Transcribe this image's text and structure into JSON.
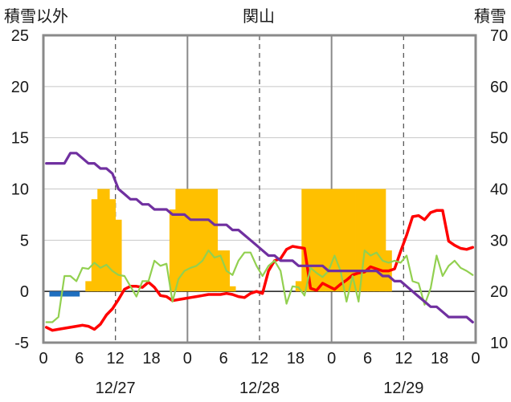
{
  "chart_data": {
    "type": "line",
    "title": "関山",
    "left_axis_label": "積雪以外",
    "right_axis_label": "積雪",
    "ylim_left": [
      -5,
      25
    ],
    "ylim_right": [
      10,
      70
    ],
    "yticks_left": [
      -5,
      0,
      5,
      10,
      15,
      20,
      25
    ],
    "yticks_right": [
      10,
      20,
      30,
      40,
      50,
      60,
      70
    ],
    "xlim_hours": [
      0,
      72
    ],
    "x_tick_labels": [
      "0",
      "6",
      "12",
      "18",
      "0",
      "6",
      "12",
      "18",
      "0",
      "6",
      "12",
      "18",
      "0"
    ],
    "date_labels": [
      "12/27",
      "12/28",
      "12/29"
    ],
    "grid": true,
    "colors": {
      "precip_snow": "#ffc000",
      "precip_rain": "#1f6fbf",
      "temperature": "#ff0000",
      "wind": "#92d050",
      "snow_depth": "#7030a0"
    },
    "series": [
      {
        "key": "precip_snow",
        "kind": "bar",
        "axis": "left",
        "x": [
          7,
          8,
          9,
          10,
          11,
          12,
          21,
          22,
          23,
          24,
          25,
          26,
          27,
          28,
          29,
          30,
          31,
          42,
          43,
          44,
          45,
          46,
          47,
          48,
          49,
          50,
          51,
          52,
          53,
          54,
          55,
          56,
          57
        ],
        "values": [
          1,
          9,
          10,
          10,
          9,
          7,
          8,
          10,
          10,
          10,
          10,
          10,
          10,
          10,
          4,
          4,
          0.5,
          1,
          10,
          10,
          10,
          10,
          10,
          10,
          10,
          10,
          10,
          10,
          10,
          10,
          10,
          10,
          4
        ]
      },
      {
        "key": "precip_rain",
        "kind": "bar",
        "axis": "left",
        "x": [
          1,
          2,
          3,
          4,
          5
        ],
        "values": [
          -0.5,
          -0.5,
          -0.5,
          -0.5,
          -0.5
        ]
      },
      {
        "key": "temperature",
        "kind": "line",
        "axis": "left",
        "x": [
          0,
          1,
          2,
          3,
          4,
          5,
          6,
          7,
          8,
          9,
          10,
          11,
          12,
          13,
          14,
          15,
          16,
          17,
          18,
          19,
          20,
          21,
          22,
          23,
          24,
          25,
          26,
          27,
          28,
          29,
          30,
          31,
          32,
          33,
          34,
          35,
          36,
          37,
          38,
          39,
          40,
          41,
          42,
          43,
          44,
          45,
          46,
          47,
          48,
          49,
          50,
          51,
          52,
          53,
          54,
          55,
          56,
          57,
          58,
          59,
          60,
          61,
          62,
          63,
          64,
          65,
          66,
          67,
          68,
          69,
          70,
          71
        ],
        "values": [
          -3.5,
          -3.8,
          -3.7,
          -3.6,
          -3.5,
          -3.4,
          -3.3,
          -3.4,
          -3.7,
          -3.2,
          -2.3,
          -1.7,
          -0.8,
          0.2,
          0.5,
          0.5,
          0.4,
          0.9,
          0.4,
          -0.4,
          -0.5,
          -0.9,
          -0.8,
          -0.7,
          -0.6,
          -0.5,
          -0.4,
          -0.3,
          -0.3,
          -0.3,
          -0.2,
          -0.3,
          -0.5,
          -0.6,
          -0.2,
          0.0,
          -0.2,
          2.0,
          3.0,
          3.2,
          4.1,
          4.4,
          4.3,
          4.2,
          0.3,
          0.1,
          0.8,
          0.5,
          0.2,
          0.7,
          1.1,
          1.6,
          1.8,
          1.9,
          2.4,
          2.2,
          2.0,
          2.0,
          2.2,
          3.9,
          5.5,
          7.3,
          7.4,
          7.0,
          7.7,
          7.9,
          7.9,
          4.9,
          4.5,
          4.2,
          4.1,
          4.3
        ]
      },
      {
        "key": "wind",
        "kind": "line",
        "axis": "left",
        "x": [
          0,
          1,
          2,
          3,
          4,
          5,
          6,
          7,
          8,
          9,
          10,
          11,
          12,
          13,
          14,
          15,
          16,
          17,
          18,
          19,
          20,
          21,
          22,
          23,
          24,
          25,
          26,
          27,
          28,
          29,
          30,
          31,
          32,
          33,
          34,
          35,
          36,
          37,
          38,
          39,
          40,
          41,
          42,
          43,
          44,
          45,
          46,
          47,
          48,
          49,
          50,
          51,
          52,
          53,
          54,
          55,
          56,
          57,
          58,
          59,
          60,
          61,
          62,
          63,
          64,
          65,
          66,
          67,
          68,
          69,
          70,
          71
        ],
        "values": [
          -3,
          -3,
          -2.5,
          1.5,
          1.5,
          1.0,
          2.3,
          2.2,
          2.8,
          2.3,
          2.6,
          2.0,
          1.6,
          1.5,
          0.5,
          -0.5,
          1.0,
          1.0,
          3.0,
          2.5,
          2.7,
          -1.0,
          1.2,
          2.0,
          2.3,
          2.5,
          3.0,
          4.0,
          3.3,
          3.5,
          2.0,
          1.6,
          3.0,
          3.8,
          3.8,
          2.5,
          1.5,
          2.5,
          3.0,
          2.0,
          -1.2,
          0.5,
          0.4,
          -0.4,
          2.3,
          1.8,
          1.4,
          2.0,
          3.5,
          2.0,
          -1.0,
          1.5,
          -1.0,
          4.0,
          3.5,
          3.8,
          3.0,
          2.8,
          3.0,
          2.8,
          3.5,
          1.0,
          0.8,
          -1.3,
          0.3,
          3.5,
          1.5,
          2.5,
          3.0,
          2.3,
          2.0,
          1.6
        ]
      },
      {
        "key": "snow_depth",
        "kind": "line",
        "axis": "right",
        "x": [
          0,
          1,
          2,
          3,
          4,
          5,
          6,
          7,
          8,
          9,
          10,
          11,
          12,
          13,
          14,
          15,
          16,
          17,
          18,
          19,
          20,
          21,
          22,
          23,
          24,
          25,
          26,
          27,
          28,
          29,
          30,
          31,
          32,
          33,
          34,
          35,
          36,
          37,
          38,
          39,
          40,
          41,
          42,
          43,
          44,
          45,
          46,
          47,
          48,
          49,
          50,
          51,
          52,
          53,
          54,
          55,
          56,
          57,
          58,
          59,
          60,
          61,
          62,
          63,
          64,
          65,
          66,
          67,
          68,
          69,
          70,
          71
        ],
        "values": [
          45,
          45,
          45,
          45,
          47,
          47,
          46,
          45,
          45,
          44,
          44,
          43,
          40,
          39,
          38,
          38,
          37,
          37,
          36,
          36,
          36,
          35,
          35,
          35,
          34,
          34,
          34,
          34,
          33,
          33,
          33,
          32,
          32,
          31,
          30,
          29,
          28,
          27,
          27,
          26,
          26,
          26,
          25,
          25,
          25,
          25,
          25,
          24,
          24,
          24,
          24,
          24,
          24,
          24,
          24,
          24,
          23,
          23,
          22,
          22,
          21,
          20,
          19,
          18,
          17,
          17,
          16,
          15,
          15,
          15,
          15,
          14
        ]
      }
    ]
  }
}
